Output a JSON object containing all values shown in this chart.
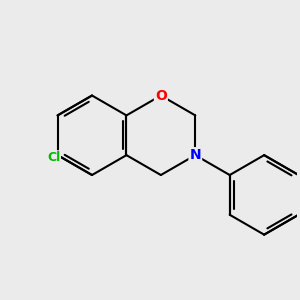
{
  "background_color": "#ebebeb",
  "bond_color": "#000000",
  "bond_width": 1.5,
  "atom_colors": {
    "O": "#ff0000",
    "N": "#0000ff",
    "Cl": "#00bb00",
    "C": "#000000"
  },
  "figsize": [
    3.0,
    3.0
  ],
  "dpi": 100,
  "xlim": [
    0,
    10
  ],
  "ylim": [
    0,
    10
  ]
}
